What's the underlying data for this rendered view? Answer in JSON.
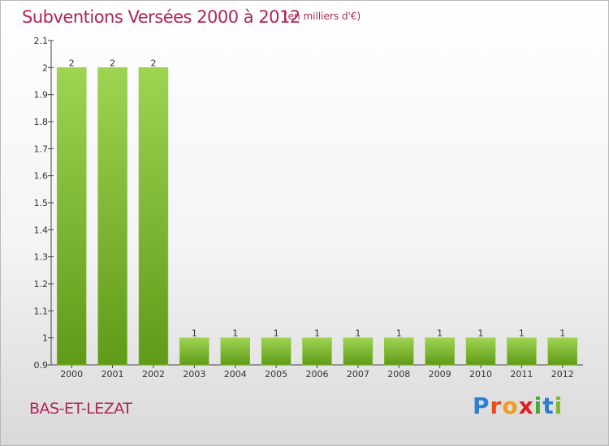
{
  "header": {
    "title": "Subventions Versées 2000 à 2012",
    "unit": "(en milliers d'€)"
  },
  "footer": {
    "place": "BAS-ET-LEZAT",
    "logo": "Proxiti"
  },
  "colors": {
    "title": "#b0245a",
    "bar_top": "#9ed452",
    "bar_bottom": "#5f9b18",
    "logo_letters": [
      "#2c7fd1",
      "#e94b1c",
      "#f39a1b",
      "#e31d24",
      "#4aa834",
      "#2c7fd1",
      "#7cb928"
    ]
  },
  "chart_data": {
    "type": "bar",
    "categories": [
      "2000",
      "2001",
      "2002",
      "2003",
      "2004",
      "2005",
      "2006",
      "2007",
      "2008",
      "2009",
      "2010",
      "2011",
      "2012"
    ],
    "values": [
      2,
      2,
      2,
      1,
      1,
      1,
      1,
      1,
      1,
      1,
      1,
      1,
      1
    ],
    "data_labels": [
      "2",
      "2",
      "2",
      "1",
      "1",
      "1",
      "1",
      "1",
      "1",
      "1",
      "1",
      "1",
      "1"
    ],
    "title": "Subventions Versées 2000 à 2012",
    "ylim": [
      0.9,
      2.1
    ],
    "yticks": [
      0.9,
      1,
      1.1,
      1.2,
      1.3,
      1.4,
      1.5,
      1.6,
      1.7,
      1.8,
      1.9,
      2,
      2.1
    ],
    "ytick_labels": [
      "0.9",
      "1",
      "1.1",
      "1.2",
      "1.3",
      "1.4",
      "1.5",
      "1.6",
      "1.7",
      "1.8",
      "1.9",
      "2",
      "2.1"
    ],
    "grid": false,
    "legend": "none"
  }
}
